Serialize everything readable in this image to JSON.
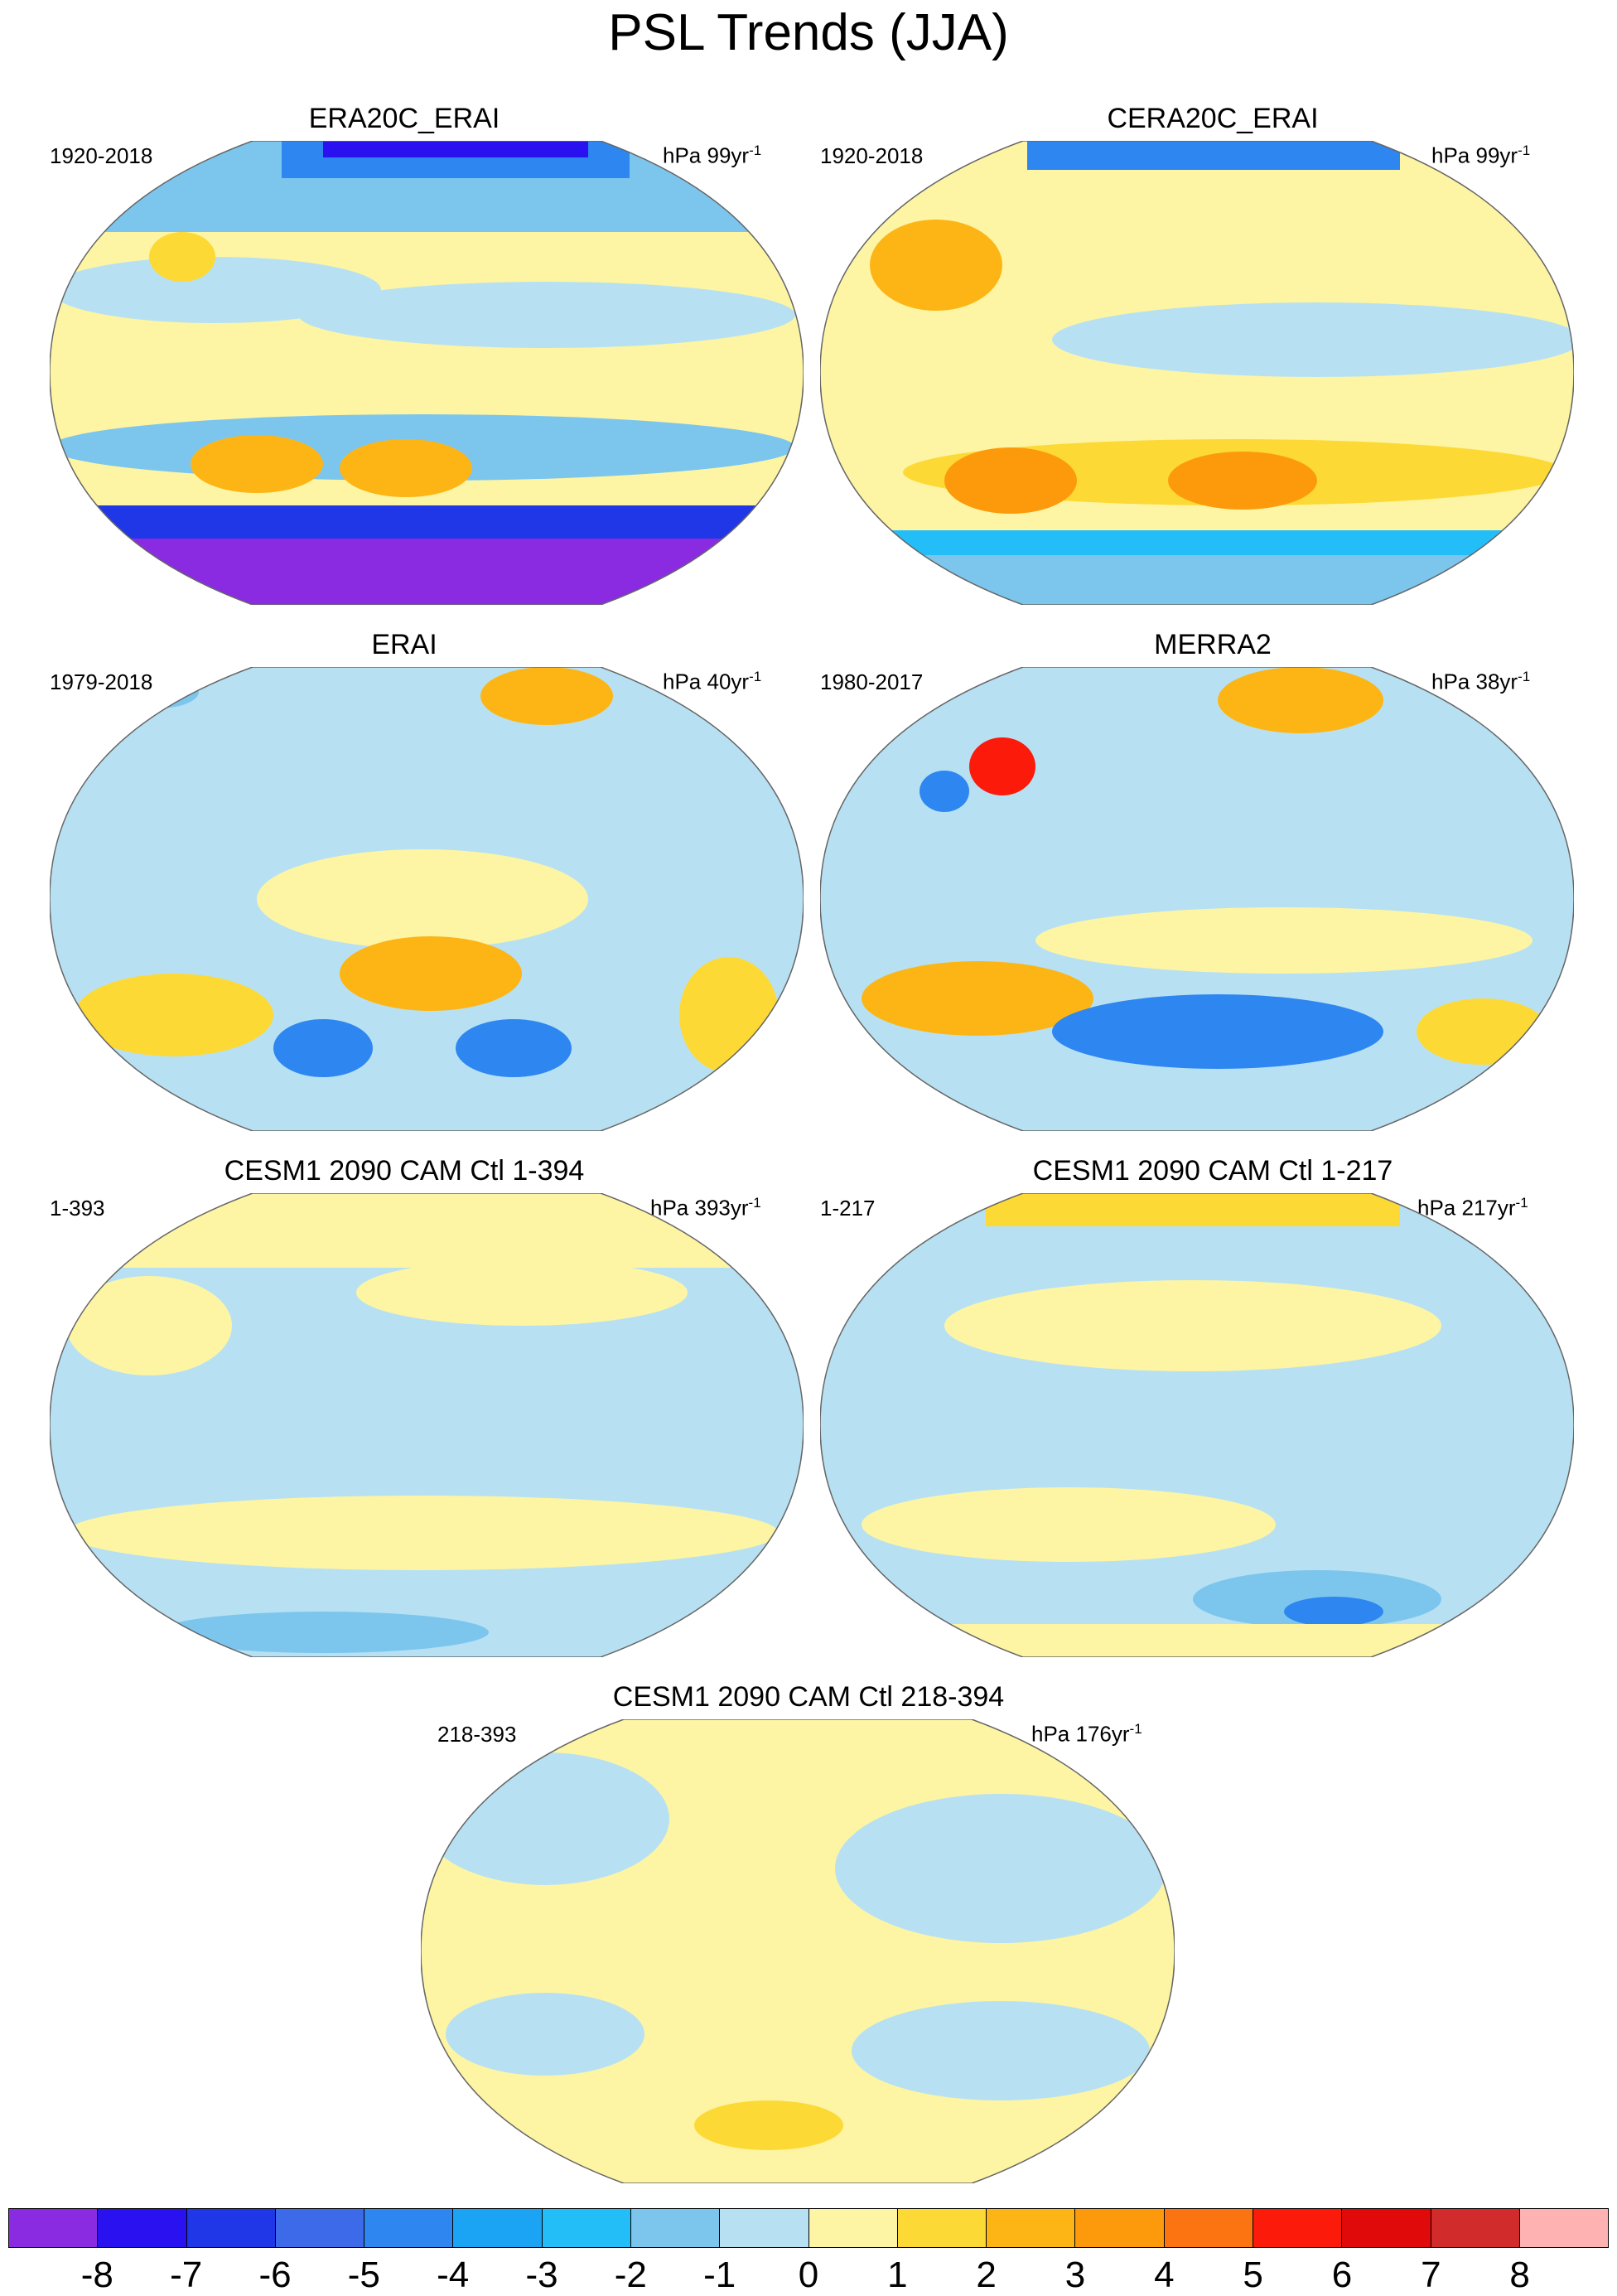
{
  "title": "PSL Trends (JJA)",
  "panels": [
    {
      "title": "ERA20C_ERAI",
      "period": "1920-2018",
      "units": "hPa 99yr",
      "units_sup": "-1",
      "fill": "#fdf5a4"
    },
    {
      "title": "CERA20C_ERAI",
      "period": "1920-2018",
      "units": "hPa 99yr",
      "units_sup": "-1",
      "fill": "#fdf5a4"
    },
    {
      "title": "ERAI",
      "period": "1979-2018",
      "units": "hPa 40yr",
      "units_sup": "-1",
      "fill": "#b7e1f3"
    },
    {
      "title": "MERRA2",
      "period": "1980-2017",
      "units": "hPa 38yr",
      "units_sup": "-1",
      "fill": "#b7e1f3"
    },
    {
      "title": "CESM1 2090 CAM Ctl 1-394",
      "period": "1-393",
      "units": "hPa 393yr",
      "units_sup": "-1",
      "fill": "#b7e1f3"
    },
    {
      "title": "CESM1 2090 CAM Ctl 1-217",
      "period": "1-217",
      "units": "hPa 217yr",
      "units_sup": "-1",
      "fill": "#b7e1f3"
    },
    {
      "title": "CESM1 2090 CAM Ctl 218-394",
      "period": "218-393",
      "units": "hPa 176yr",
      "units_sup": "-1",
      "fill": "#fdf5a4"
    }
  ],
  "colorbar": {
    "colors": [
      "#8a2be2",
      "#2a12f0",
      "#1f37e6",
      "#3c6ae8",
      "#2e86f0",
      "#1ca4f4",
      "#23bef8",
      "#7cc6ee",
      "#b7e1f3",
      "#fdf5a4",
      "#fdd935",
      "#fcb515",
      "#fc9a0c",
      "#fc7412",
      "#fc1a0a",
      "#e00a0a",
      "#d12b2b",
      "#ffb2b2"
    ],
    "ticks": [
      "-8",
      "-7",
      "-6",
      "-5",
      "-4",
      "-3",
      "-2",
      "-1",
      "0",
      "1",
      "2",
      "3",
      "4",
      "5",
      "6",
      "7",
      "8"
    ]
  }
}
